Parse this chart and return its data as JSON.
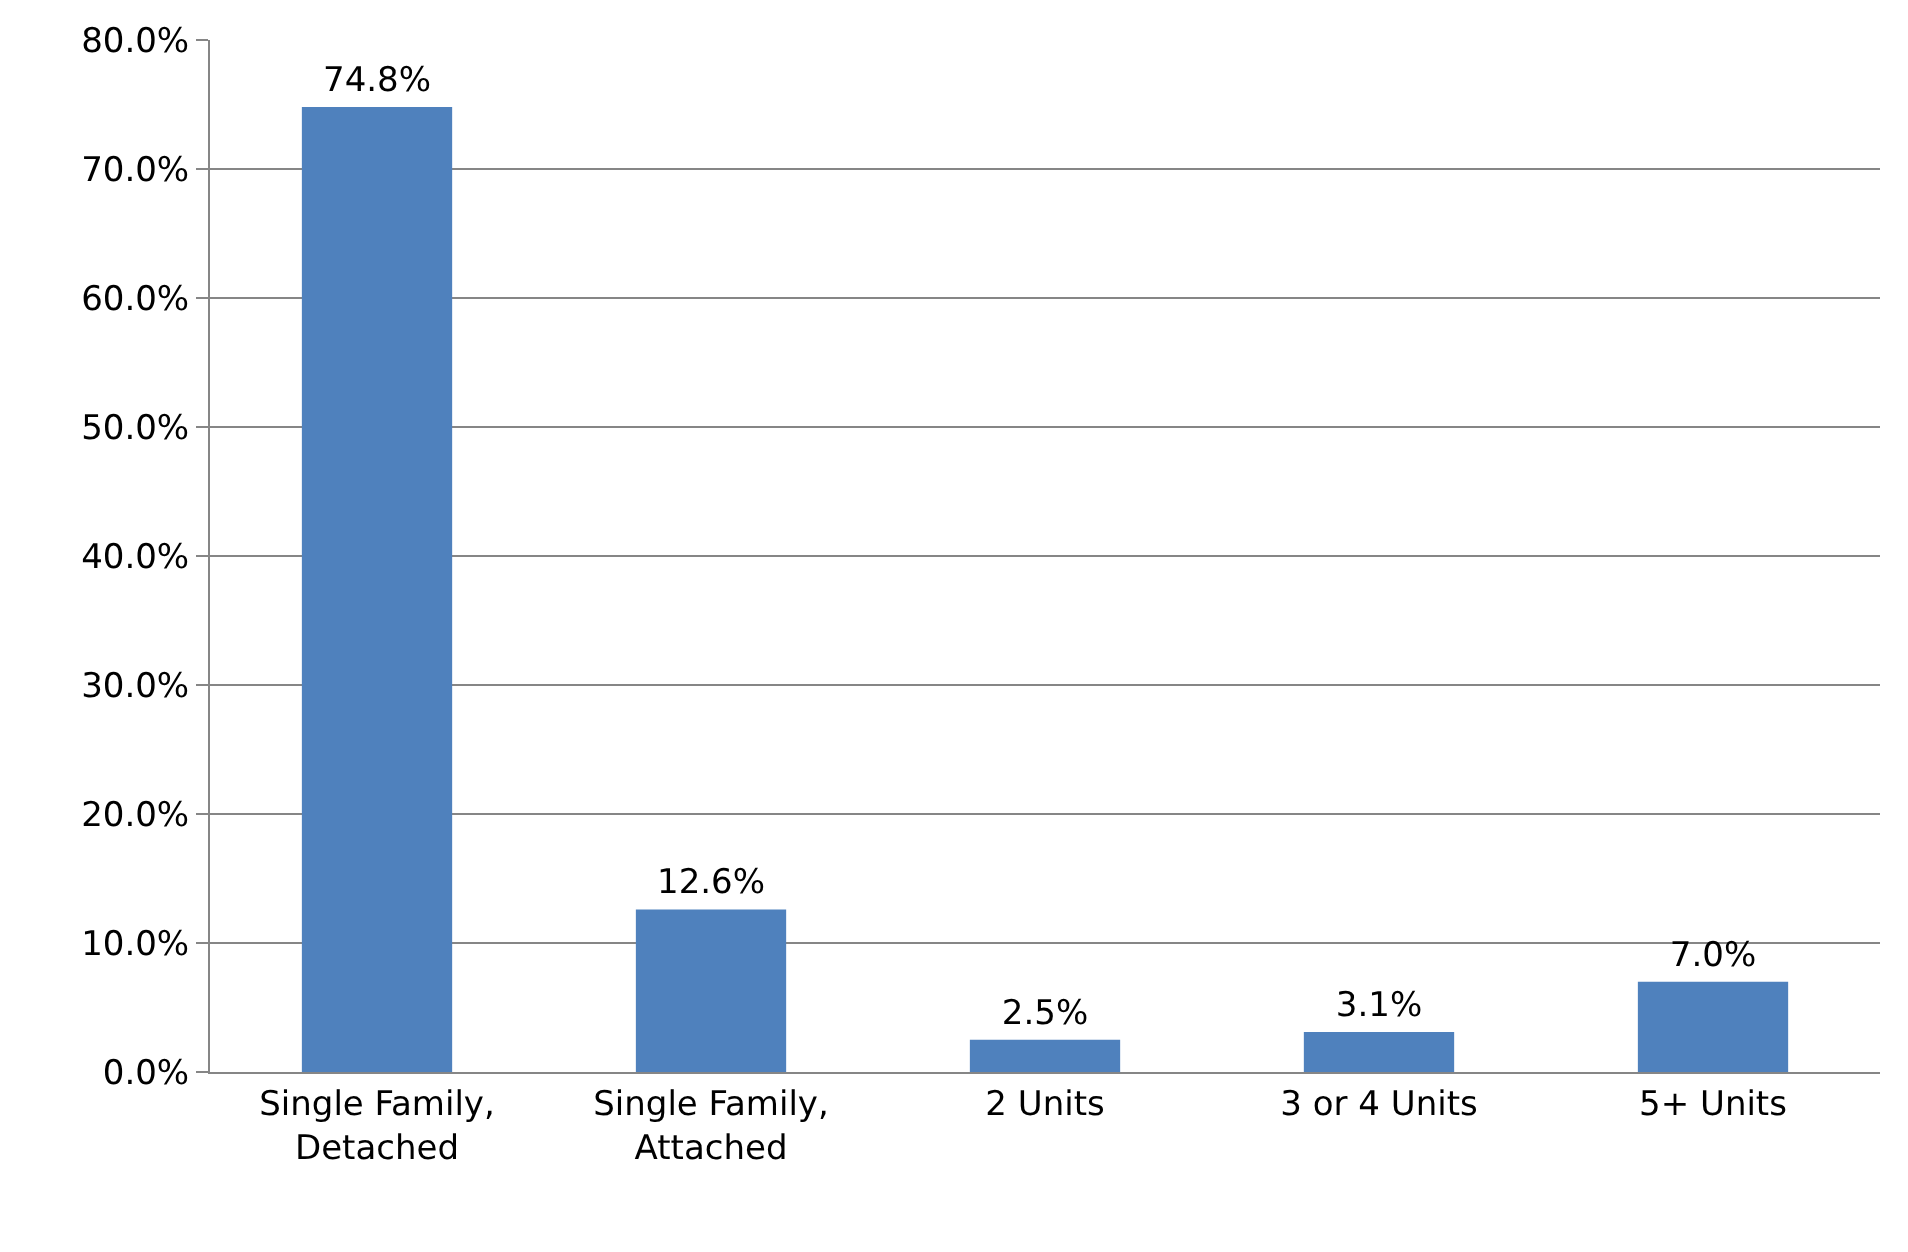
{
  "chart_data": {
    "type": "bar",
    "categories": [
      "Single Family, Detached",
      "Single Family, Attached",
      "2 Units",
      "3 or 4 Units",
      "5+ Units"
    ],
    "values": [
      74.8,
      12.6,
      2.5,
      3.1,
      7.0
    ],
    "value_labels": [
      "74.8%",
      "12.6%",
      "2.5%",
      "3.1%",
      "7.0%"
    ],
    "color": "#4f81bd",
    "ylim": [
      0,
      80
    ],
    "yticks": [
      {
        "value": 0,
        "label": "0.0%"
      },
      {
        "value": 10,
        "label": "10.0%"
      },
      {
        "value": 20,
        "label": "20.0%"
      },
      {
        "value": 30,
        "label": "30.0%"
      },
      {
        "value": 40,
        "label": "40.0%"
      },
      {
        "value": 50,
        "label": "50.0%"
      },
      {
        "value": 60,
        "label": "60.0%"
      },
      {
        "value": 70,
        "label": "70.0%"
      },
      {
        "value": 80,
        "label": "80.0%"
      }
    ],
    "grid": "y",
    "legend": false
  }
}
